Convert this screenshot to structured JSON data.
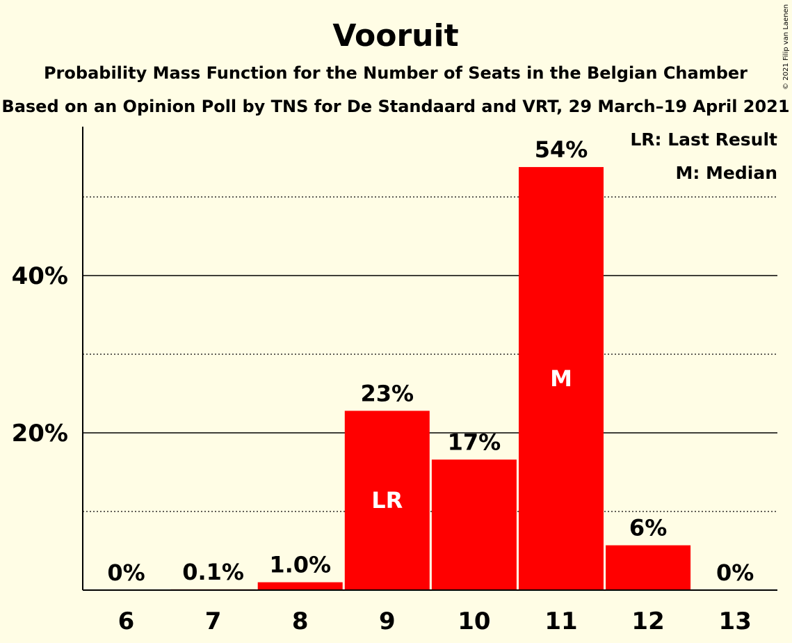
{
  "chart_data": {
    "type": "bar",
    "title": "Vooruit",
    "subtitle": "Probability Mass Function for the Number of Seats in the Belgian Chamber",
    "subtitle2": "Based on an Opinion Poll by TNS for De Standaard and VRT, 29 March–19 April 2021",
    "copyright": "© 2021 Filip van Laenen",
    "categories": [
      "6",
      "7",
      "8",
      "9",
      "10",
      "11",
      "12",
      "13"
    ],
    "values": [
      0,
      0.1,
      1.0,
      22.8,
      16.6,
      53.8,
      5.7,
      0
    ],
    "value_labels": [
      "0%",
      "0.1%",
      "1.0%",
      "23%",
      "17%",
      "54%",
      "6%",
      "0%"
    ],
    "in_bar_labels": [
      "",
      "",
      "",
      "LR",
      "",
      "M",
      "",
      ""
    ],
    "ylim": [
      0,
      58.5
    ],
    "yticks_major": [
      20,
      40
    ],
    "yticks_major_labels": [
      "20%",
      "40%"
    ],
    "yticks_minor": [
      10,
      30,
      50
    ],
    "legend": [
      "LR: Last Result",
      "M: Median"
    ],
    "legend_position": "top-right",
    "bar_color": "#FF0000",
    "background_color": "#FFFDE5"
  }
}
